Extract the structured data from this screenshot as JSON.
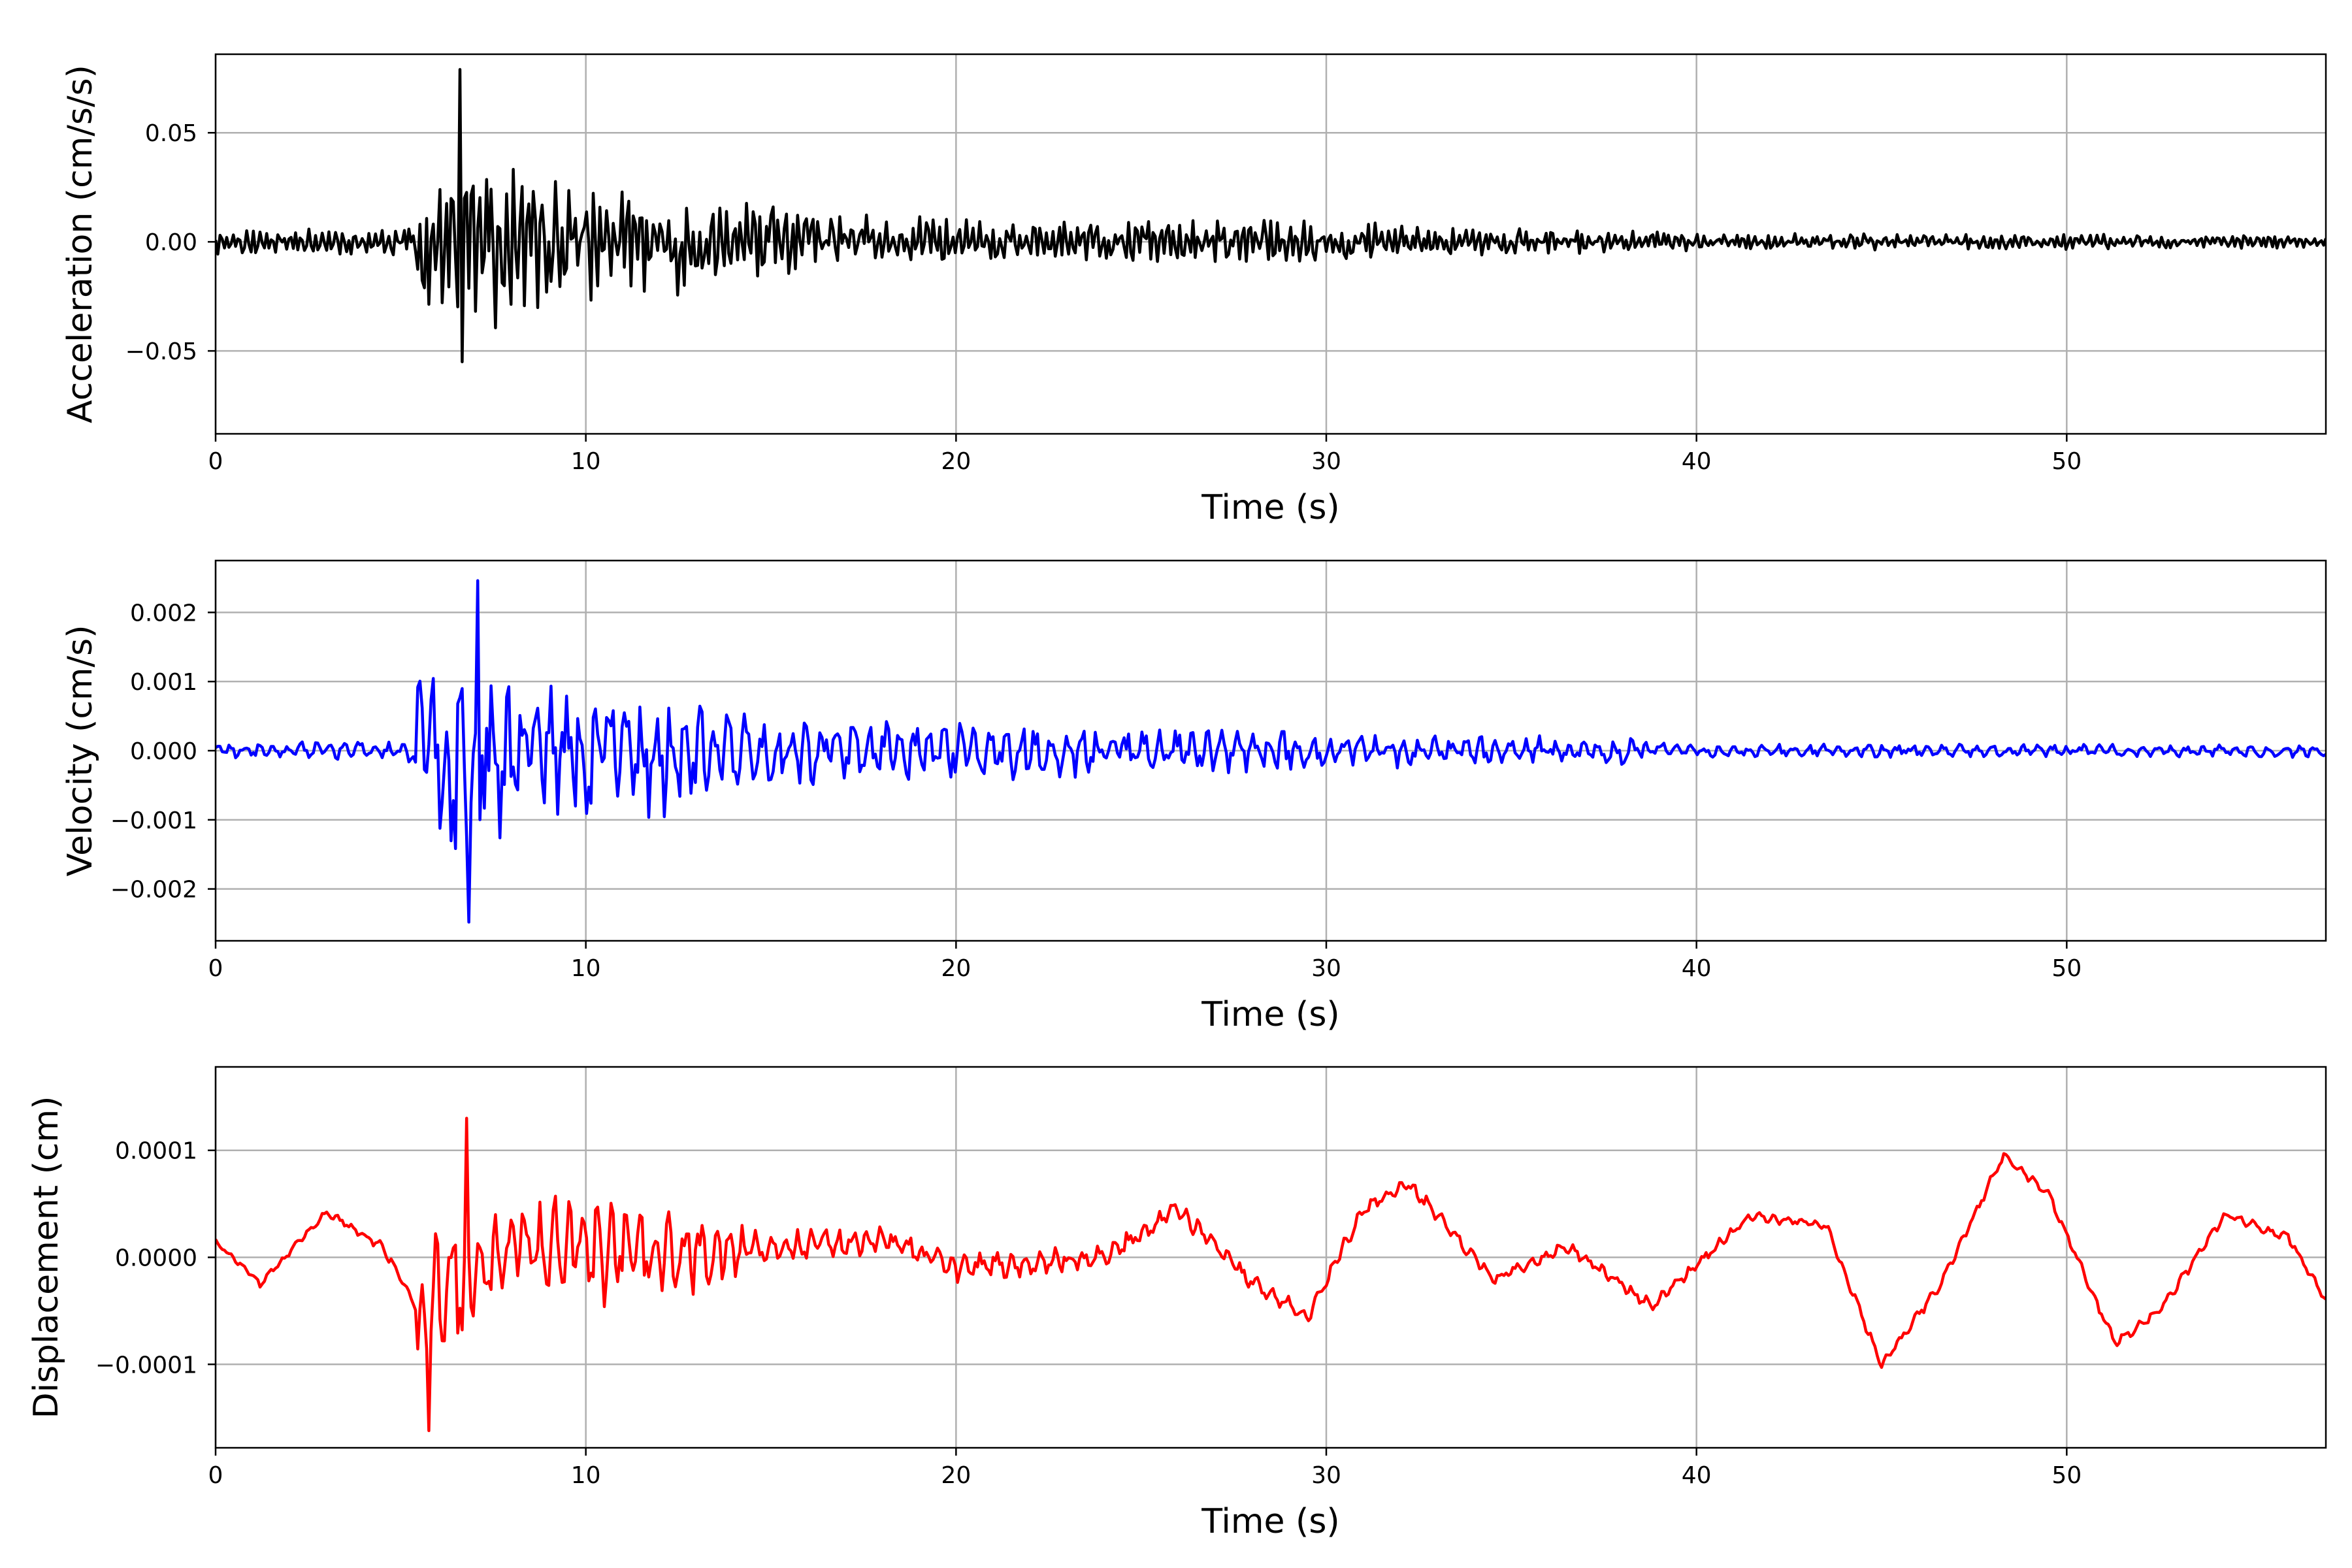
{
  "chart_data": [
    {
      "type": "line",
      "xlabel": "Time (s)",
      "ylabel": "Acceleration (cm/s/s)",
      "xlim": [
        0,
        57
      ],
      "ylim": [
        -0.088,
        0.086
      ],
      "xticks": [
        0,
        10,
        20,
        30,
        40,
        50
      ],
      "xtick_labels": [
        "0",
        "10",
        "20",
        "30",
        "40",
        "50"
      ],
      "yticks": [
        -0.05,
        0.0,
        0.05
      ],
      "ytick_labels": [
        "−0.05",
        "0.00",
        "0.05"
      ],
      "grid": true,
      "color": "#000000",
      "series": [
        {
          "kind": "oscillation",
          "x_start": 0,
          "x_end": 57,
          "dt": 0.06,
          "period": 0.18,
          "seed": 11,
          "peak": 0.079,
          "trough": -0.055,
          "envelope": [
            [
              0,
              0.006
            ],
            [
              5.2,
              0.007
            ],
            [
              5.5,
              0.03
            ],
            [
              6.8,
              0.055
            ],
            [
              8,
              0.035
            ],
            [
              10,
              0.03
            ],
            [
              12,
              0.027
            ],
            [
              14,
              0.02
            ],
            [
              18,
              0.012
            ],
            [
              22,
              0.012
            ],
            [
              29,
              0.01
            ],
            [
              33,
              0.008
            ],
            [
              40,
              0.004
            ],
            [
              50,
              0.004
            ],
            [
              57,
              0.003
            ]
          ]
        }
      ]
    },
    {
      "type": "line",
      "xlabel": "Time (s)",
      "ylabel": "Velocity (cm/s)",
      "xlim": [
        0,
        57
      ],
      "ylim": [
        -0.00275,
        0.00275
      ],
      "xticks": [
        0,
        10,
        20,
        30,
        40,
        50
      ],
      "xtick_labels": [
        "0",
        "10",
        "20",
        "30",
        "40",
        "50"
      ],
      "yticks": [
        -0.002,
        -0.001,
        0.0,
        0.001,
        0.002
      ],
      "ytick_labels": [
        "−0.002",
        "−0.001",
        "0.000",
        "0.001",
        "0.002"
      ],
      "grid": true,
      "color": "#0000ff",
      "series": [
        {
          "kind": "oscillation",
          "x_start": 0,
          "x_end": 57,
          "dt": 0.06,
          "period": 0.42,
          "seed": 23,
          "peak": 0.00246,
          "trough": -0.00248,
          "envelope": [
            [
              0,
              0.00012
            ],
            [
              5.2,
              0.00015
            ],
            [
              5.5,
              0.0011
            ],
            [
              6.5,
              0.0019
            ],
            [
              8,
              0.0011
            ],
            [
              10,
              0.0011
            ],
            [
              12,
              0.00105
            ],
            [
              13.5,
              0.0006
            ],
            [
              18,
              0.00045
            ],
            [
              20,
              0.00045
            ],
            [
              29,
              0.0003
            ],
            [
              38,
              0.0002
            ],
            [
              40,
              0.0001
            ],
            [
              57,
              0.0001
            ]
          ]
        }
      ]
    },
    {
      "type": "line",
      "xlabel": "Time (s)",
      "ylabel": "Displacement (cm)",
      "xlim": [
        0,
        57
      ],
      "ylim": [
        -0.000178,
        0.000178
      ],
      "xticks": [
        0,
        10,
        20,
        30,
        40,
        50
      ],
      "xtick_labels": [
        "0",
        "10",
        "20",
        "30",
        "40",
        "50"
      ],
      "yticks": [
        -0.0001,
        0.0,
        0.0001
      ],
      "ytick_labels": [
        "−0.0001",
        "0.0000",
        "0.0001"
      ],
      "grid": true,
      "color": "#ff0000",
      "series": [
        {
          "kind": "trend_plus_oscillation",
          "x_start": 0,
          "x_end": 57,
          "dt": 0.06,
          "period": 0.4,
          "seed": 37,
          "peak": 0.00013,
          "trough": -0.000162,
          "trend": [
            [
              0,
              1.5e-05
            ],
            [
              1.2,
              -2.5e-05
            ],
            [
              3,
              4.2e-05
            ],
            [
              4.5,
              1e-05
            ],
            [
              5.5,
              -5e-05
            ],
            [
              8,
              1.5e-05
            ],
            [
              12,
              0.0
            ],
            [
              15,
              1e-05
            ],
            [
              18,
              1.5e-05
            ],
            [
              20,
              -1e-05
            ],
            [
              24,
              0.0
            ],
            [
              26,
              4.5e-05
            ],
            [
              28,
              -2.5e-05
            ],
            [
              29.5,
              -5.5e-05
            ],
            [
              31,
              4.5e-05
            ],
            [
              32.2,
              7e-05
            ],
            [
              34.5,
              -2e-05
            ],
            [
              36.5,
              1e-05
            ],
            [
              38.8,
              -4.5e-05
            ],
            [
              41.5,
              4e-05
            ],
            [
              43.5,
              3e-05
            ],
            [
              45,
              -0.0001
            ],
            [
              46.5,
              -3e-05
            ],
            [
              48.3,
              9.5e-05
            ],
            [
              49.5,
              6e-05
            ],
            [
              51.3,
              -8e-05
            ],
            [
              52.5,
              -5e-05
            ],
            [
              54.3,
              4e-05
            ],
            [
              56,
              1.8e-05
            ],
            [
              57,
              -4e-05
            ]
          ],
          "envelope": [
            [
              0,
              3e-06
            ],
            [
              5.3,
              5e-06
            ],
            [
              5.5,
              9e-05
            ],
            [
              6.6,
              0.00011
            ],
            [
              8,
              4e-05
            ],
            [
              10,
              5.5e-05
            ],
            [
              12,
              5e-05
            ],
            [
              13.5,
              3e-05
            ],
            [
              16,
              1.5e-05
            ],
            [
              20,
              1.5e-05
            ],
            [
              28,
              1e-05
            ],
            [
              30,
              8e-06
            ],
            [
              40,
              6e-06
            ],
            [
              57,
              5e-06
            ]
          ]
        }
      ]
    }
  ]
}
